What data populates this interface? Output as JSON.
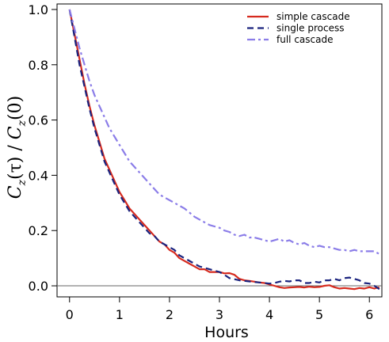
{
  "chart_data": {
    "type": "line",
    "xlabel": "Hours",
    "ylabel": "Cz(τ)/Cz(0)",
    "ylabel_parts": {
      "a": "C",
      "a_sub": "z",
      "a_arg": "(τ) / ",
      "b": "C",
      "b_sub": "z",
      "b_arg": "(0)"
    },
    "xlim": [
      -0.25,
      6.25
    ],
    "ylim": [
      -0.04,
      1.02
    ],
    "xticks": [
      0,
      1,
      2,
      3,
      4,
      5,
      6
    ],
    "xtick_labels": [
      "0",
      "1",
      "2",
      "3",
      "4",
      "5",
      "6"
    ],
    "yticks": [
      0.0,
      0.2,
      0.4,
      0.6,
      0.8,
      1.0
    ],
    "ytick_labels": [
      "0.0",
      "0.2",
      "0.4",
      "0.6",
      "0.8",
      "1.0"
    ],
    "legend_position": "top-right",
    "grid": false,
    "reference_line": 0,
    "series": [
      {
        "name": "simple cascade",
        "color": "#d62a1e",
        "dash": "solid",
        "x": [
          0,
          0.1,
          0.2,
          0.3,
          0.4,
          0.5,
          0.6,
          0.7,
          0.8,
          0.9,
          1.0,
          1.1,
          1.2,
          1.3,
          1.4,
          1.5,
          1.6,
          1.7,
          1.8,
          1.9,
          2.0,
          2.1,
          2.2,
          2.3,
          2.4,
          2.5,
          2.6,
          2.7,
          2.8,
          2.9,
          3.0,
          3.1,
          3.2,
          3.3,
          3.4,
          3.5,
          3.6,
          3.7,
          3.8,
          3.9,
          4.0,
          4.1,
          4.2,
          4.3,
          4.4,
          4.5,
          4.6,
          4.7,
          4.8,
          4.9,
          5.0,
          5.1,
          5.2,
          5.3,
          5.4,
          5.5,
          5.6,
          5.7,
          5.8,
          5.9,
          6.0,
          6.1,
          6.2
        ],
        "y": [
          1.0,
          0.91,
          0.82,
          0.73,
          0.65,
          0.58,
          0.52,
          0.46,
          0.42,
          0.38,
          0.34,
          0.31,
          0.28,
          0.26,
          0.24,
          0.22,
          0.2,
          0.18,
          0.16,
          0.15,
          0.13,
          0.12,
          0.1,
          0.09,
          0.08,
          0.07,
          0.06,
          0.06,
          0.05,
          0.05,
          0.05,
          0.045,
          0.046,
          0.04,
          0.025,
          0.02,
          0.018,
          0.015,
          0.012,
          0.01,
          0.005,
          0.0,
          -0.005,
          -0.008,
          -0.006,
          -0.005,
          -0.004,
          -0.006,
          -0.003,
          -0.005,
          -0.004,
          0.0,
          0.002,
          -0.005,
          -0.01,
          -0.008,
          -0.01,
          -0.012,
          -0.008,
          -0.01,
          -0.005,
          -0.01,
          -0.005
        ]
      },
      {
        "name": "single process",
        "color": "#1a237e",
        "dash": "dashed",
        "x": [
          0,
          0.1,
          0.2,
          0.3,
          0.4,
          0.5,
          0.6,
          0.7,
          0.8,
          0.9,
          1.0,
          1.1,
          1.2,
          1.3,
          1.4,
          1.5,
          1.6,
          1.7,
          1.8,
          1.9,
          2.0,
          2.1,
          2.2,
          2.3,
          2.4,
          2.5,
          2.6,
          2.7,
          2.8,
          2.9,
          3.0,
          3.1,
          3.2,
          3.3,
          3.4,
          3.5,
          3.6,
          3.7,
          3.8,
          3.9,
          4.0,
          4.1,
          4.2,
          4.3,
          4.4,
          4.5,
          4.6,
          4.7,
          4.8,
          4.9,
          5.0,
          5.1,
          5.2,
          5.3,
          5.4,
          5.5,
          5.6,
          5.7,
          5.8,
          5.9,
          6.0,
          6.1,
          6.2
        ],
        "y": [
          1.0,
          0.9,
          0.8,
          0.72,
          0.64,
          0.57,
          0.51,
          0.45,
          0.41,
          0.37,
          0.33,
          0.3,
          0.27,
          0.25,
          0.23,
          0.21,
          0.19,
          0.18,
          0.16,
          0.15,
          0.14,
          0.13,
          0.11,
          0.1,
          0.09,
          0.08,
          0.07,
          0.065,
          0.06,
          0.055,
          0.05,
          0.04,
          0.028,
          0.024,
          0.02,
          0.018,
          0.016,
          0.014,
          0.012,
          0.01,
          0.008,
          0.01,
          0.015,
          0.018,
          0.016,
          0.02,
          0.02,
          0.01,
          0.01,
          0.015,
          0.012,
          0.02,
          0.02,
          0.025,
          0.02,
          0.028,
          0.03,
          0.025,
          0.02,
          0.01,
          0.008,
          0.0,
          -0.012
        ]
      },
      {
        "name": "full cascade",
        "color": "#8b7de8",
        "dash": "dashdot",
        "x": [
          0,
          0.1,
          0.2,
          0.3,
          0.4,
          0.5,
          0.6,
          0.7,
          0.8,
          0.9,
          1.0,
          1.1,
          1.2,
          1.3,
          1.4,
          1.5,
          1.6,
          1.7,
          1.8,
          1.9,
          2.0,
          2.1,
          2.2,
          2.3,
          2.4,
          2.5,
          2.6,
          2.7,
          2.8,
          2.9,
          3.0,
          3.1,
          3.2,
          3.3,
          3.4,
          3.5,
          3.6,
          3.7,
          3.8,
          3.9,
          4.0,
          4.1,
          4.2,
          4.3,
          4.4,
          4.5,
          4.6,
          4.7,
          4.8,
          4.9,
          5.0,
          5.1,
          5.2,
          5.3,
          5.4,
          5.5,
          5.6,
          5.7,
          5.8,
          5.9,
          6.0,
          6.1,
          6.2
        ],
        "y": [
          1.0,
          0.93,
          0.86,
          0.8,
          0.74,
          0.69,
          0.65,
          0.61,
          0.57,
          0.54,
          0.51,
          0.48,
          0.45,
          0.43,
          0.41,
          0.39,
          0.37,
          0.35,
          0.33,
          0.32,
          0.31,
          0.3,
          0.29,
          0.28,
          0.265,
          0.25,
          0.24,
          0.23,
          0.22,
          0.215,
          0.21,
          0.2,
          0.195,
          0.185,
          0.18,
          0.185,
          0.175,
          0.175,
          0.17,
          0.165,
          0.16,
          0.165,
          0.17,
          0.16,
          0.165,
          0.155,
          0.15,
          0.155,
          0.145,
          0.14,
          0.145,
          0.14,
          0.14,
          0.135,
          0.13,
          0.13,
          0.125,
          0.13,
          0.125,
          0.125,
          0.125,
          0.125,
          0.115
        ]
      }
    ]
  }
}
